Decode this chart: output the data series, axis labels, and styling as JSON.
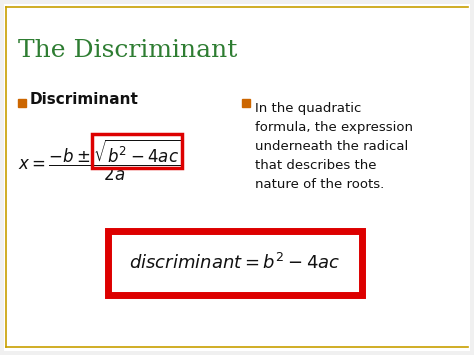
{
  "title": "The Discriminant",
  "title_color": "#2E7D32",
  "title_fontsize": 18,
  "bg_color": "#F0F0F0",
  "slide_bg": "#FFFFFF",
  "border_color": "#C8A000",
  "bullet_color": "#CC6600",
  "bullet1_text": "Discriminant",
  "bullet2_lines": [
    "In the quadratic",
    "formula, the expression",
    "underneath the radical",
    "that describes the",
    "nature of the roots."
  ],
  "quadratic_formula": "$x = \\dfrac{-b \\pm \\sqrt{b^2-4ac}}{2a}$",
  "discriminant_formula": "$\\mathit{discriminant} = b^2 - 4ac$",
  "box_color": "#DD0000",
  "quad_box_color": "#DD0000"
}
